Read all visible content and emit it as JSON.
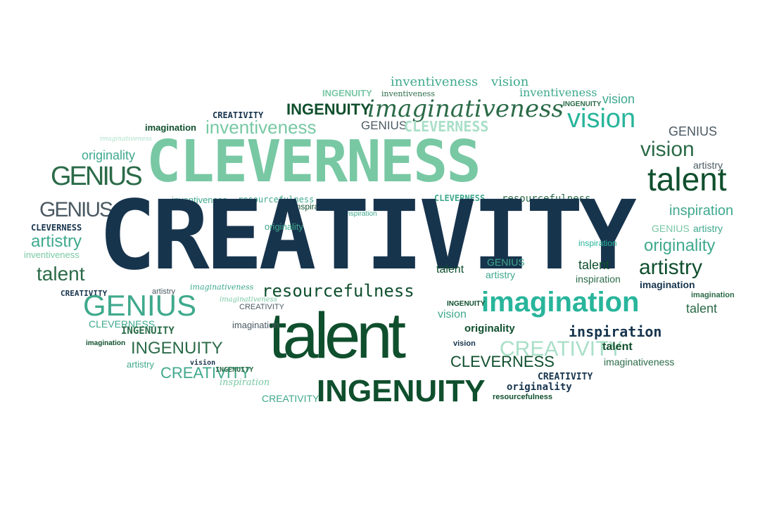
{
  "palette": {
    "navy": "#17344d",
    "dark_green": "#0f4f2d",
    "forest": "#2b6b48",
    "teal": "#3fa98d",
    "mint": "#78c8a4",
    "light_mint": "#a9dfc8",
    "aqua": "#28b59b",
    "slate": "#4b5a63"
  },
  "words": [
    {
      "id": "w1",
      "text": "inventiveness"
    },
    {
      "id": "w2",
      "text": "vision"
    },
    {
      "id": "w3",
      "text": "INGENUITY"
    },
    {
      "id": "w4",
      "text": "inventiveness"
    },
    {
      "id": "w5",
      "text": "inventiveness"
    },
    {
      "id": "w6",
      "text": "vision"
    },
    {
      "id": "w7",
      "text": "INGENUITY"
    },
    {
      "id": "w8",
      "text": "imaginativeness"
    },
    {
      "id": "w9",
      "text": "CREATIVITY"
    },
    {
      "id": "w10",
      "text": "INGENUITY"
    },
    {
      "id": "w11",
      "text": "vision"
    },
    {
      "id": "w12",
      "text": "imagination"
    },
    {
      "id": "w13",
      "text": "inventiveness"
    },
    {
      "id": "w14",
      "text": "GENIUS"
    },
    {
      "id": "w15",
      "text": "CLEVERNESS"
    },
    {
      "id": "w16",
      "text": "GENIUS"
    },
    {
      "id": "w17",
      "text": "imaginativeness"
    },
    {
      "id": "w18",
      "text": "CLEVERNESS"
    },
    {
      "id": "w19",
      "text": "vision"
    },
    {
      "id": "w20",
      "text": "originality"
    },
    {
      "id": "w21",
      "text": "talent"
    },
    {
      "id": "w22",
      "text": "GENIUS"
    },
    {
      "id": "w23",
      "text": "artistry"
    },
    {
      "id": "w24",
      "text": "inventiveness"
    },
    {
      "id": "w25",
      "text": "resourcefulness"
    },
    {
      "id": "w26",
      "text": "CLEVERNESS"
    },
    {
      "id": "w27",
      "text": "resourcefulness"
    },
    {
      "id": "w28",
      "text": "inspiration"
    },
    {
      "id": "w29",
      "text": "GENIUS"
    },
    {
      "id": "w30",
      "text": "CLEVERNESS"
    },
    {
      "id": "w31",
      "text": "inspiration"
    },
    {
      "id": "w32",
      "text": "artistry"
    },
    {
      "id": "w33",
      "text": "inspiration"
    },
    {
      "id": "w34",
      "text": "artistry"
    },
    {
      "id": "w35",
      "text": "GENIUS"
    },
    {
      "id": "w36",
      "text": "CREATIVITY"
    },
    {
      "id": "w37",
      "text": "originality"
    },
    {
      "id": "w38",
      "text": "talent"
    },
    {
      "id": "w39",
      "text": "inspiration"
    },
    {
      "id": "w40",
      "text": "artistry"
    },
    {
      "id": "w41",
      "text": "imaginativeness"
    },
    {
      "id": "w42",
      "text": "inventiveness"
    },
    {
      "id": "w43",
      "text": "originality"
    },
    {
      "id": "w44",
      "text": "artistry"
    },
    {
      "id": "w45",
      "text": "talent"
    },
    {
      "id": "w46",
      "text": "GENIUS"
    },
    {
      "id": "w47",
      "text": "inspiration"
    },
    {
      "id": "w48",
      "text": "imagination"
    },
    {
      "id": "w49",
      "text": "talent"
    },
    {
      "id": "w50",
      "text": "CREATIVITY"
    },
    {
      "id": "w51",
      "text": "artistry"
    },
    {
      "id": "w52",
      "text": "imaginativeness"
    },
    {
      "id": "w53",
      "text": "resourcefulness"
    },
    {
      "id": "w54",
      "text": "imagination"
    },
    {
      "id": "w55",
      "text": "INGENUITY"
    },
    {
      "id": "w56",
      "text": "talent"
    },
    {
      "id": "w57",
      "text": "imagination"
    },
    {
      "id": "w58",
      "text": "vision"
    },
    {
      "id": "w59",
      "text": "GENIUS"
    },
    {
      "id": "w60",
      "text": "CREATIVITY"
    },
    {
      "id": "w61",
      "text": "talent"
    },
    {
      "id": "w62",
      "text": "CLEVERNESS"
    },
    {
      "id": "w63",
      "text": "INGENUITY"
    },
    {
      "id": "w64",
      "text": "imagination"
    },
    {
      "id": "w65",
      "text": "originality"
    },
    {
      "id": "w66",
      "text": "inspiration"
    },
    {
      "id": "w67",
      "text": "imagination"
    },
    {
      "id": "w68",
      "text": "INGENUITY"
    },
    {
      "id": "w69",
      "text": "vision"
    },
    {
      "id": "w70",
      "text": "CREATIVITY"
    },
    {
      "id": "w71",
      "text": "talent"
    },
    {
      "id": "w72",
      "text": "artistry"
    },
    {
      "id": "w73",
      "text": "vision"
    },
    {
      "id": "w74",
      "text": "CLEVERNESS"
    },
    {
      "id": "w75",
      "text": "imaginativeness"
    },
    {
      "id": "w76",
      "text": "CREATIVITY"
    },
    {
      "id": "w77",
      "text": "INGENUITY"
    },
    {
      "id": "w78",
      "text": "CREATIVITY"
    },
    {
      "id": "w79",
      "text": "inspiration"
    },
    {
      "id": "w80",
      "text": "INGENUITY"
    },
    {
      "id": "w81",
      "text": "originality"
    },
    {
      "id": "w82",
      "text": "CREATIVITY"
    },
    {
      "id": "w83",
      "text": "resourcefulness"
    }
  ]
}
